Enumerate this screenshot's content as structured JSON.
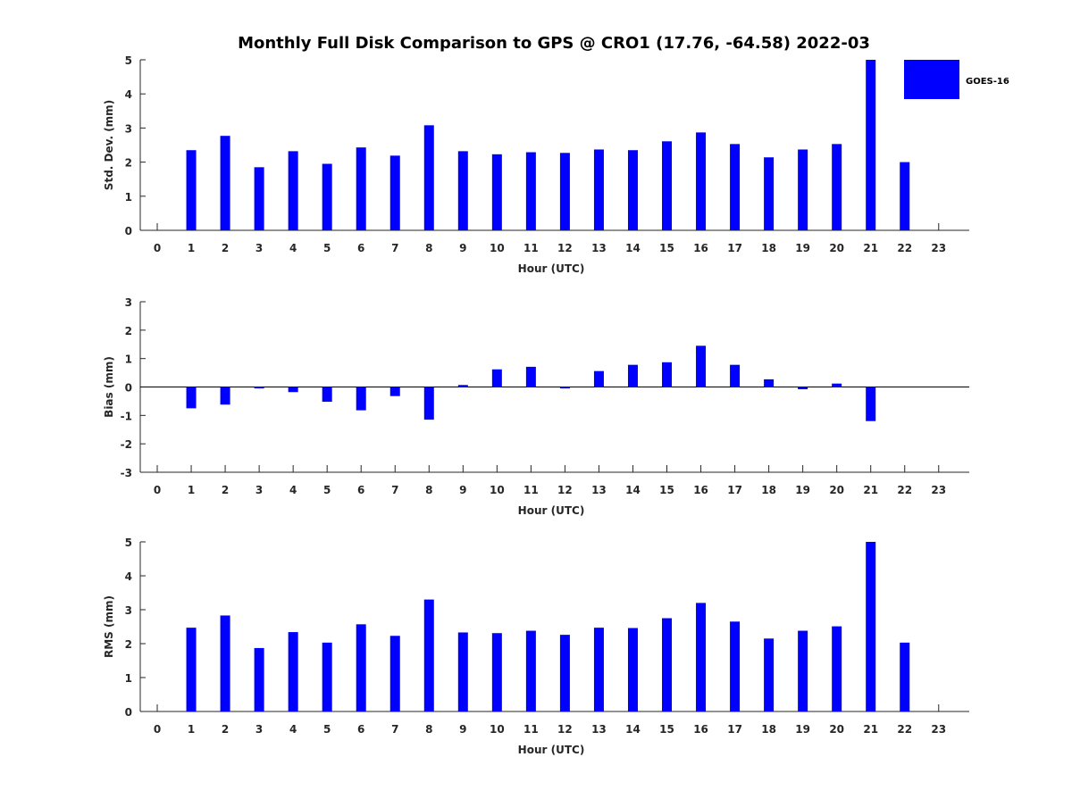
{
  "title": "Monthly Full Disk Comparison to GPS @ CRO1 (17.76, -64.58) 2022-03",
  "legend": {
    "label": "GOES-16",
    "color": "#0000ff",
    "placement": "top-right"
  },
  "chart_data": [
    {
      "type": "bar",
      "xlabel": "Hour (UTC)",
      "ylabel": "Std. Dev. (mm)",
      "ylim": [
        0,
        5
      ],
      "yticks": [
        0,
        1,
        2,
        3,
        4,
        5
      ],
      "x": [
        0,
        1,
        2,
        3,
        4,
        5,
        6,
        7,
        8,
        9,
        10,
        11,
        12,
        13,
        14,
        15,
        16,
        17,
        18,
        19,
        20,
        21,
        22,
        23
      ],
      "series": [
        {
          "values": [
            null,
            2.35,
            2.77,
            1.85,
            2.32,
            1.95,
            2.43,
            2.19,
            3.08,
            2.32,
            2.23,
            2.29,
            2.27,
            2.37,
            2.35,
            2.61,
            2.87,
            2.53,
            2.14,
            2.37,
            2.53,
            5.0,
            2.0,
            null
          ]
        }
      ],
      "grid": false
    },
    {
      "type": "bar",
      "xlabel": "Hour (UTC)",
      "ylabel": "Bias (mm)",
      "ylim": [
        -3,
        3
      ],
      "yticks": [
        -3,
        -2,
        -1,
        0,
        1,
        2,
        3
      ],
      "x": [
        0,
        1,
        2,
        3,
        4,
        5,
        6,
        7,
        8,
        9,
        10,
        11,
        12,
        13,
        14,
        15,
        16,
        17,
        18,
        19,
        20,
        21,
        22,
        23
      ],
      "series": [
        {
          "values": [
            null,
            -0.75,
            -0.62,
            -0.05,
            -0.18,
            -0.52,
            -0.82,
            -0.32,
            -1.15,
            0.07,
            0.62,
            0.71,
            -0.05,
            0.56,
            0.78,
            0.87,
            1.45,
            0.78,
            0.27,
            -0.08,
            0.12,
            -1.2,
            0.0,
            null
          ]
        }
      ],
      "grid": false
    },
    {
      "type": "bar",
      "xlabel": "Hour (UTC)",
      "ylabel": "RMS (mm)",
      "ylim": [
        0,
        5
      ],
      "yticks": [
        0,
        1,
        2,
        3,
        4,
        5
      ],
      "x": [
        0,
        1,
        2,
        3,
        4,
        5,
        6,
        7,
        8,
        9,
        10,
        11,
        12,
        13,
        14,
        15,
        16,
        17,
        18,
        19,
        20,
        21,
        22,
        23
      ],
      "series": [
        {
          "values": [
            null,
            2.47,
            2.83,
            1.87,
            2.34,
            2.03,
            2.57,
            2.23,
            3.3,
            2.33,
            2.31,
            2.38,
            2.26,
            2.47,
            2.46,
            2.75,
            3.2,
            2.65,
            2.15,
            2.38,
            2.51,
            5.0,
            2.03,
            null
          ]
        }
      ],
      "grid": false
    }
  ]
}
